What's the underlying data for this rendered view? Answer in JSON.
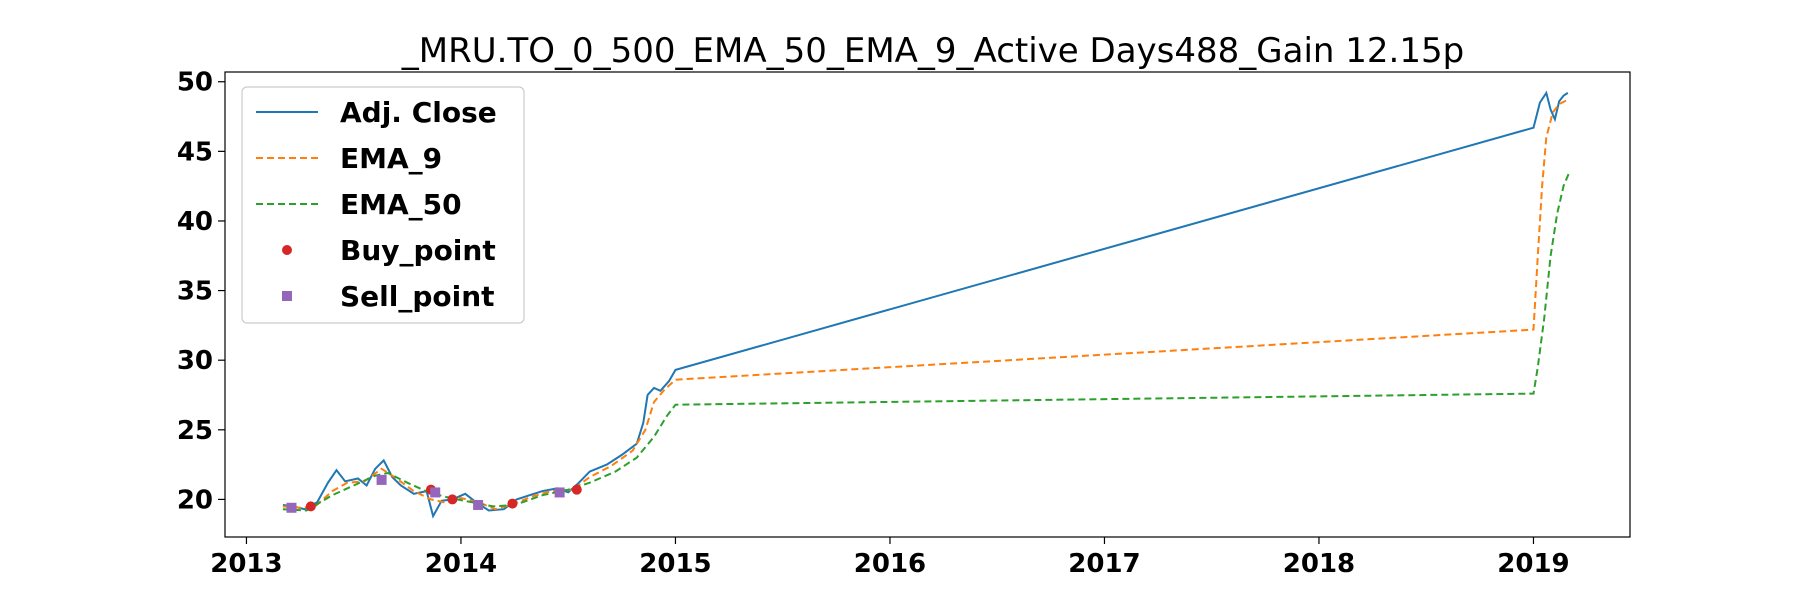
{
  "chart_data": {
    "type": "line",
    "title": "_MRU.TO_0_500_EMA_50_EMA_9_Active Days488_Gain  12.15p",
    "xlabel": "",
    "ylabel": "",
    "xlim": [
      2012.9,
      2019.45
    ],
    "ylim": [
      17.3,
      50.7
    ],
    "x_ticks": [
      2013,
      2014,
      2015,
      2016,
      2017,
      2018,
      2019
    ],
    "x_tick_labels": [
      "2013",
      "2014",
      "2015",
      "2016",
      "2017",
      "2018",
      "2019"
    ],
    "y_ticks": [
      20,
      25,
      30,
      35,
      40,
      45,
      50
    ],
    "y_tick_labels": [
      "20",
      "25",
      "30",
      "35",
      "40",
      "45",
      "50"
    ],
    "grid": false,
    "legend_position": "top-left",
    "series": [
      {
        "name": "Adj. Close",
        "style": "solid",
        "color": "#1f77b4",
        "points": [
          [
            2013.17,
            19.6
          ],
          [
            2013.22,
            19.5
          ],
          [
            2013.27,
            19.3
          ],
          [
            2013.33,
            19.8
          ],
          [
            2013.38,
            21.2
          ],
          [
            2013.42,
            22.1
          ],
          [
            2013.46,
            21.3
          ],
          [
            2013.52,
            21.5
          ],
          [
            2013.56,
            21.0
          ],
          [
            2013.6,
            22.2
          ],
          [
            2013.64,
            22.8
          ],
          [
            2013.68,
            21.6
          ],
          [
            2013.72,
            21.0
          ],
          [
            2013.78,
            20.4
          ],
          [
            2013.84,
            20.6
          ],
          [
            2013.87,
            18.8
          ],
          [
            2013.91,
            19.9
          ],
          [
            2013.96,
            20.0
          ],
          [
            2014.02,
            20.4
          ],
          [
            2014.07,
            19.8
          ],
          [
            2014.13,
            19.2
          ],
          [
            2014.2,
            19.3
          ],
          [
            2014.26,
            20.0
          ],
          [
            2014.32,
            20.3
          ],
          [
            2014.38,
            20.6
          ],
          [
            2014.45,
            20.8
          ],
          [
            2014.5,
            20.5
          ],
          [
            2014.55,
            21.2
          ],
          [
            2014.6,
            22.0
          ],
          [
            2014.68,
            22.5
          ],
          [
            2014.75,
            23.2
          ],
          [
            2014.82,
            24.0
          ],
          [
            2014.85,
            25.5
          ],
          [
            2014.87,
            27.5
          ],
          [
            2014.9,
            28.0
          ],
          [
            2014.93,
            27.8
          ],
          [
            2014.97,
            28.5
          ],
          [
            2015.0,
            29.3
          ],
          [
            2019.0,
            46.7
          ],
          [
            2019.03,
            48.5
          ],
          [
            2019.06,
            49.2
          ],
          [
            2019.08,
            48.0
          ],
          [
            2019.1,
            47.3
          ],
          [
            2019.12,
            48.6
          ],
          [
            2019.14,
            49.0
          ],
          [
            2019.16,
            49.2
          ]
        ]
      },
      {
        "name": "EMA_9",
        "style": "dashed",
        "color": "#ff7f0e",
        "points": [
          [
            2013.17,
            19.5
          ],
          [
            2013.25,
            19.4
          ],
          [
            2013.32,
            19.5
          ],
          [
            2013.4,
            20.6
          ],
          [
            2013.47,
            21.2
          ],
          [
            2013.55,
            21.3
          ],
          [
            2013.63,
            22.2
          ],
          [
            2013.7,
            21.5
          ],
          [
            2013.78,
            20.6
          ],
          [
            2013.86,
            20.0
          ],
          [
            2013.92,
            19.8
          ],
          [
            2014.0,
            20.1
          ],
          [
            2014.08,
            19.8
          ],
          [
            2014.16,
            19.3
          ],
          [
            2014.25,
            19.7
          ],
          [
            2014.33,
            20.2
          ],
          [
            2014.42,
            20.6
          ],
          [
            2014.52,
            20.7
          ],
          [
            2014.6,
            21.6
          ],
          [
            2014.7,
            22.4
          ],
          [
            2014.8,
            23.5
          ],
          [
            2014.86,
            25.0
          ],
          [
            2014.9,
            27.0
          ],
          [
            2014.95,
            27.9
          ],
          [
            2015.0,
            28.6
          ],
          [
            2019.0,
            32.2
          ],
          [
            2019.02,
            37.5
          ],
          [
            2019.04,
            42.5
          ],
          [
            2019.06,
            46.0
          ],
          [
            2019.09,
            47.8
          ],
          [
            2019.12,
            48.4
          ],
          [
            2019.16,
            48.7
          ]
        ]
      },
      {
        "name": "EMA_50",
        "style": "dashed",
        "color": "#2ca02c",
        "points": [
          [
            2013.17,
            19.3
          ],
          [
            2013.28,
            19.2
          ],
          [
            2013.4,
            20.3
          ],
          [
            2013.5,
            21.0
          ],
          [
            2013.6,
            21.7
          ],
          [
            2013.66,
            21.9
          ],
          [
            2013.75,
            21.2
          ],
          [
            2013.85,
            20.5
          ],
          [
            2013.95,
            20.1
          ],
          [
            2014.05,
            19.8
          ],
          [
            2014.15,
            19.5
          ],
          [
            2014.25,
            19.6
          ],
          [
            2014.38,
            20.3
          ],
          [
            2014.5,
            20.7
          ],
          [
            2014.6,
            21.2
          ],
          [
            2014.72,
            22.0
          ],
          [
            2014.82,
            23.0
          ],
          [
            2014.9,
            24.5
          ],
          [
            2014.96,
            26.0
          ],
          [
            2015.0,
            26.8
          ],
          [
            2019.0,
            27.6
          ],
          [
            2019.02,
            29.5
          ],
          [
            2019.05,
            33.0
          ],
          [
            2019.08,
            37.5
          ],
          [
            2019.11,
            40.5
          ],
          [
            2019.14,
            42.5
          ],
          [
            2019.17,
            43.6
          ]
        ]
      }
    ],
    "markers": [
      {
        "name": "Buy_point",
        "shape": "circle",
        "color": "#d62728",
        "points": [
          [
            2013.3,
            19.5
          ],
          [
            2013.86,
            20.7
          ],
          [
            2013.96,
            20.0
          ],
          [
            2014.24,
            19.7
          ],
          [
            2014.54,
            20.7
          ]
        ]
      },
      {
        "name": "Sell_point",
        "shape": "square",
        "color": "#9467bd",
        "points": [
          [
            2013.21,
            19.4
          ],
          [
            2013.63,
            21.4
          ],
          [
            2013.88,
            20.5
          ],
          [
            2014.08,
            19.6
          ],
          [
            2014.46,
            20.5
          ]
        ]
      }
    ]
  }
}
